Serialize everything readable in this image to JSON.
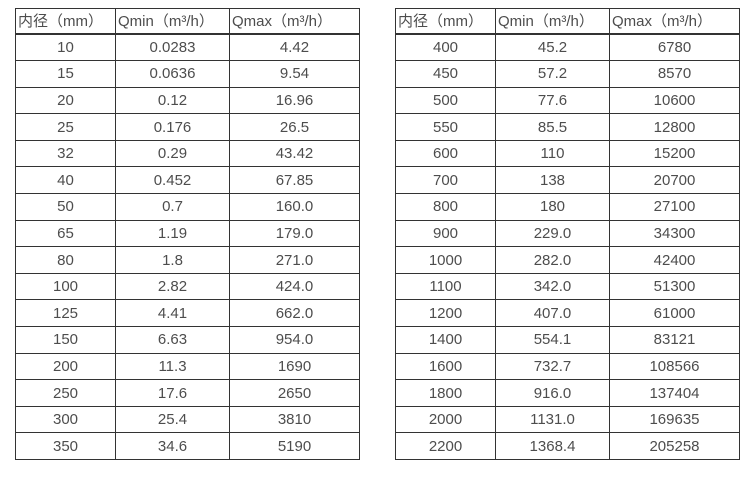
{
  "page": {
    "background_color": "#ffffff",
    "text_color": "#4d4d4d",
    "border_color": "#333333"
  },
  "chart_data": [
    {
      "type": "table",
      "title": "",
      "columns": [
        "内径（mm）",
        "Qmin（m³/h）",
        "Qmax（m³/h）"
      ],
      "rows": [
        [
          "10",
          "0.0283",
          "4.42"
        ],
        [
          "15",
          "0.0636",
          "9.54"
        ],
        [
          "20",
          "0.12",
          "16.96"
        ],
        [
          "25",
          "0.176",
          "26.5"
        ],
        [
          "32",
          "0.29",
          "43.42"
        ],
        [
          "40",
          "0.452",
          "67.85"
        ],
        [
          "50",
          "0.7",
          "160.0"
        ],
        [
          "65",
          "1.19",
          "179.0"
        ],
        [
          "80",
          "1.8",
          "271.0"
        ],
        [
          "100",
          "2.82",
          "424.0"
        ],
        [
          "125",
          "4.41",
          "662.0"
        ],
        [
          "150",
          "6.63",
          "954.0"
        ],
        [
          "200",
          "11.3",
          "1690"
        ],
        [
          "250",
          "17.6",
          "2650"
        ],
        [
          "300",
          "25.4",
          "3810"
        ],
        [
          "350",
          "34.6",
          "5190"
        ]
      ]
    },
    {
      "type": "table",
      "title": "",
      "columns": [
        "内径（mm）",
        "Qmin（m³/h）",
        "Qmax（m³/h）"
      ],
      "rows": [
        [
          "400",
          "45.2",
          "6780"
        ],
        [
          "450",
          "57.2",
          "8570"
        ],
        [
          "500",
          "77.6",
          "10600"
        ],
        [
          "550",
          "85.5",
          "12800"
        ],
        [
          "600",
          "110",
          "15200"
        ],
        [
          "700",
          "138",
          "20700"
        ],
        [
          "800",
          "180",
          "27100"
        ],
        [
          "900",
          "229.0",
          "34300"
        ],
        [
          "1000",
          "282.0",
          "42400"
        ],
        [
          "1100",
          "342.0",
          "51300"
        ],
        [
          "1200",
          "407.0",
          "61000"
        ],
        [
          "1400",
          "554.1",
          "83121"
        ],
        [
          "1600",
          "732.7",
          "108566"
        ],
        [
          "1800",
          "916.0",
          "137404"
        ],
        [
          "2000",
          "1131.0",
          "169635"
        ],
        [
          "2200",
          "1368.4",
          "205258"
        ]
      ]
    }
  ]
}
